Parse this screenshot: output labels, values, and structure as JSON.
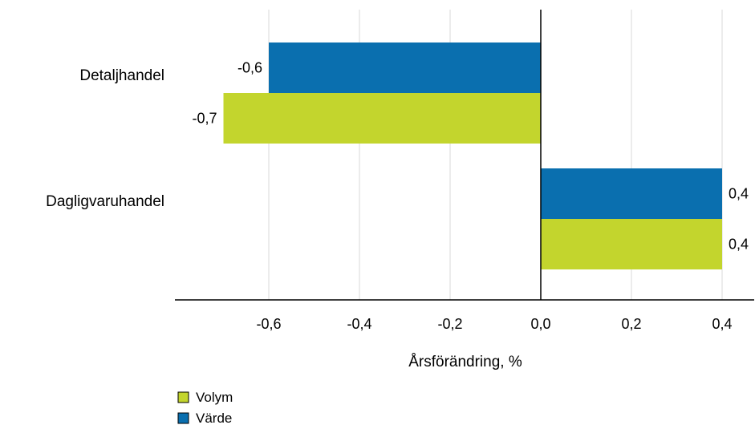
{
  "chart_data": {
    "type": "bar",
    "orientation": "horizontal",
    "categories": [
      "Detaljhandel",
      "Dagligvaruhandel"
    ],
    "series": [
      {
        "name": "Värde",
        "color": "#0a6faf",
        "values": [
          -0.6,
          0.4
        ],
        "labels": [
          "-0,6",
          "0,4"
        ]
      },
      {
        "name": "Volym",
        "color": "#c3d52d",
        "values": [
          -0.7,
          0.4
        ],
        "labels": [
          "-0,7",
          "0,4"
        ]
      }
    ],
    "xlabel": "Årsförändring, %",
    "xlim": [
      -0.8,
      0.47
    ],
    "xticks": [
      -0.6,
      -0.4,
      -0.2,
      0.0,
      0.2,
      0.4
    ],
    "xtick_labels": [
      "-0,6",
      "-0,4",
      "-0,2",
      "0,0",
      "0,2",
      "0,4"
    ],
    "grid": "vertical",
    "legend": {
      "placement": "bottom-left",
      "entries": [
        {
          "name": "Volym",
          "color": "#c3d52d"
        },
        {
          "name": "Värde",
          "color": "#0a6faf"
        }
      ]
    }
  }
}
